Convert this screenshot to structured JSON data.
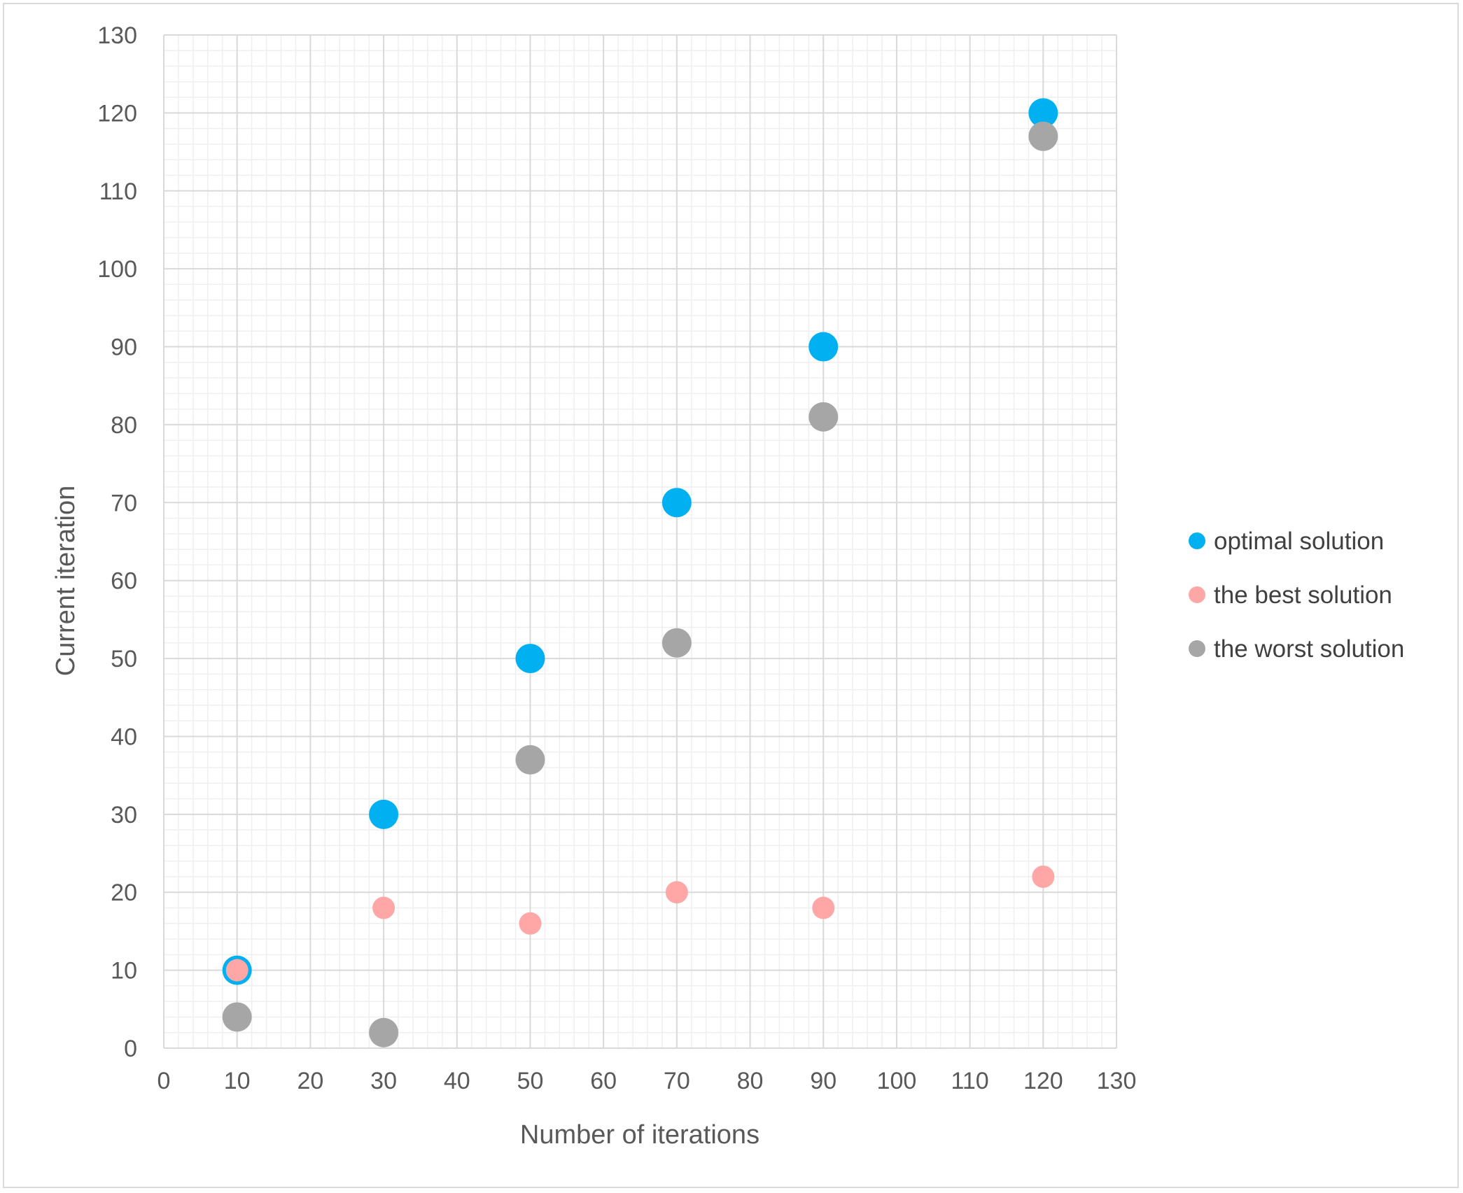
{
  "chart_data": {
    "type": "scatter",
    "title": "",
    "xlabel": "Number of iterations",
    "ylabel": "Current iteration",
    "xlim": [
      0,
      130
    ],
    "ylim": [
      0,
      130
    ],
    "x_ticks": [
      "0",
      "10",
      "20",
      "30",
      "40",
      "50",
      "60",
      "70",
      "80",
      "90",
      "100",
      "110",
      "120",
      "130"
    ],
    "y_ticks": [
      "0",
      "10",
      "20",
      "30",
      "40",
      "50",
      "60",
      "70",
      "80",
      "90",
      "100",
      "110",
      "120",
      "130"
    ],
    "grid": true,
    "minor_grid": true,
    "legend_position": "right",
    "series": [
      {
        "name": "optimal solution",
        "color": "#00b0f0",
        "points": [
          [
            10,
            10
          ],
          [
            30,
            30
          ],
          [
            50,
            50
          ],
          [
            70,
            70
          ],
          [
            90,
            90
          ],
          [
            120,
            120
          ]
        ]
      },
      {
        "name": "the best solution",
        "color": "#ffa7a7",
        "points": [
          [
            10,
            10
          ],
          [
            30,
            18
          ],
          [
            50,
            16
          ],
          [
            70,
            20
          ],
          [
            90,
            18
          ],
          [
            120,
            22
          ]
        ]
      },
      {
        "name": "the worst solution",
        "color": "#a6a6a6",
        "points": [
          [
            10,
            4
          ],
          [
            30,
            2
          ],
          [
            50,
            37
          ],
          [
            70,
            52
          ],
          [
            90,
            81
          ],
          [
            120,
            117
          ]
        ]
      }
    ]
  }
}
